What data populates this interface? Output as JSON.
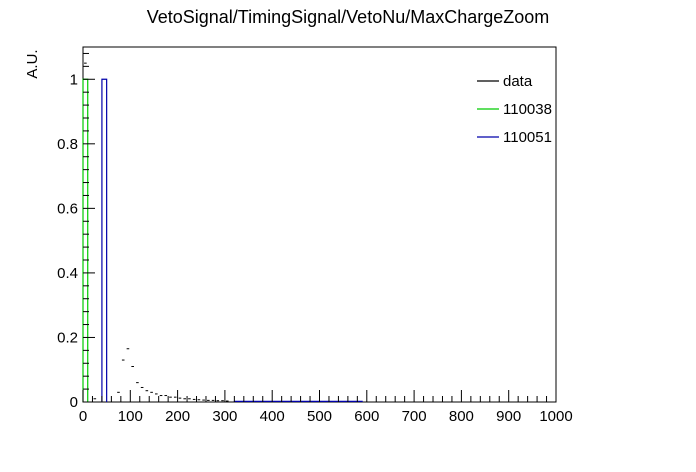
{
  "chart_data": {
    "type": "histogram",
    "title": "VetoSignal/TimingSignal/VetoNu/MaxChargeZoom",
    "ylabel": "A.U.",
    "xlabel": "",
    "xlim": [
      0,
      1000
    ],
    "ylim": [
      0,
      1.1
    ],
    "x_ticks": [
      "0",
      "100",
      "200",
      "300",
      "400",
      "500",
      "600",
      "700",
      "800",
      "900",
      "1000"
    ],
    "y_ticks": [
      "0",
      "0.2",
      "0.4",
      "0.6",
      "0.8",
      "1"
    ],
    "grid": false,
    "legend_position": "top-right",
    "legend": [
      {
        "label": "data",
        "color": "#000000"
      },
      {
        "label": "110038",
        "color": "#00cc00"
      },
      {
        "label": "110051",
        "color": "#0000aa"
      }
    ],
    "series": [
      {
        "name": "data",
        "style": "points",
        "color": "#000000",
        "bin_width": 10,
        "x": [
          5,
          15,
          25,
          35,
          45,
          55,
          65,
          75,
          85,
          95,
          105,
          115,
          125,
          135,
          145,
          155,
          165,
          175,
          185,
          195,
          205,
          215,
          225,
          235,
          245,
          255,
          265,
          275,
          285,
          295,
          305
        ],
        "values": [
          1.05,
          0.0,
          0.01,
          0.0,
          0.0,
          0.0,
          0.0,
          0.03,
          0.13,
          0.165,
          0.11,
          0.06,
          0.045,
          0.035,
          0.03,
          0.025,
          0.02,
          0.02,
          0.015,
          0.015,
          0.012,
          0.01,
          0.01,
          0.008,
          0.007,
          0.006,
          0.005,
          0.005,
          0.004,
          0.004,
          0.003
        ]
      },
      {
        "name": "110038",
        "style": "step",
        "color": "#00cc00",
        "bins": [
          [
            0,
            10,
            1.0
          ]
        ]
      },
      {
        "name": "110051",
        "style": "step",
        "color": "#0000aa",
        "bins": [
          [
            40,
            50,
            1.0
          ],
          [
            320,
            590,
            0.002
          ]
        ]
      }
    ]
  }
}
